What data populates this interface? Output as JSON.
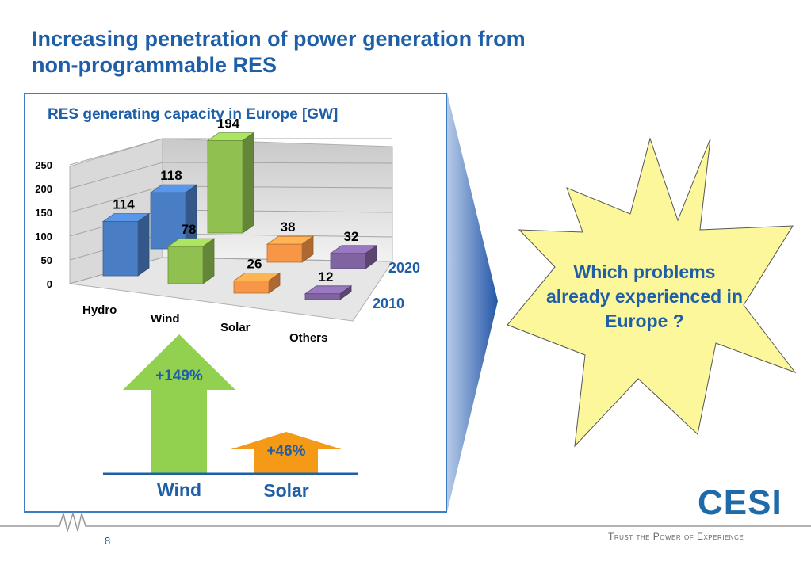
{
  "slide": {
    "title_line1": "Increasing penetration of power generation from",
    "title_line2": "non-programmable RES",
    "question": "Which problems already experienced in Europe ?",
    "page_number": "8",
    "logo": "CESI",
    "tagline": "Trust the Power of Experience"
  },
  "colors": {
    "accent": "#1f5fa8",
    "hydro": "#4a7ec4",
    "wind": "#8fc050",
    "solar": "#f79646",
    "others": "#8064a2",
    "burst": "#fbf79a"
  },
  "chart_data": [
    {
      "type": "bar",
      "title": "RES generating capacity in Europe [GW]",
      "categories": [
        "Hydro",
        "Wind",
        "Solar",
        "Others"
      ],
      "series": [
        {
          "name": "2010",
          "values": [
            114,
            78,
            26,
            12
          ]
        },
        {
          "name": "2020",
          "values": [
            118,
            194,
            38,
            32
          ]
        }
      ],
      "yticks": [
        "0",
        "50",
        "100",
        "150",
        "200",
        "250"
      ],
      "ylim": [
        0,
        250
      ],
      "grid": true,
      "legend": "right"
    },
    {
      "type": "bar",
      "categories": [
        "Wind",
        "Solar"
      ],
      "labels": [
        "+149%",
        "+46%"
      ],
      "values": [
        149,
        46
      ]
    }
  ]
}
